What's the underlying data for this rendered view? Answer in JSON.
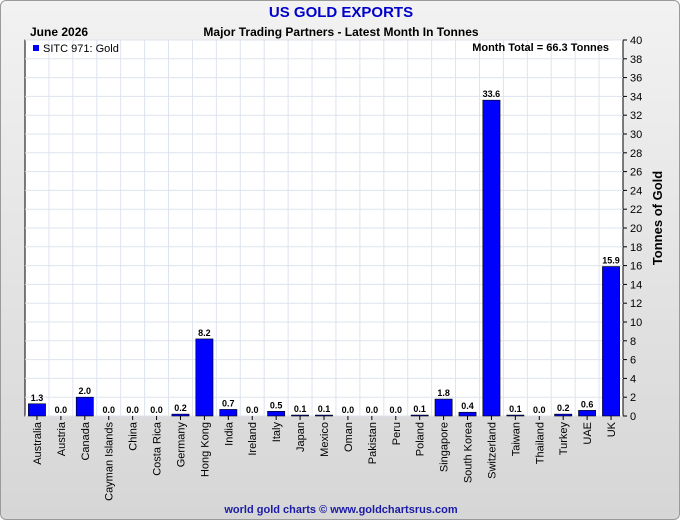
{
  "header": {
    "title": "US GOLD EXPORTS",
    "date": "June 2026",
    "subtitle": "Major Trading Partners - Latest Month In Tonnes",
    "credit": "world gold charts © www.goldchartsrus.com"
  },
  "colors": {
    "title": "#0000cc",
    "bar": "#0000ff",
    "credit": "#1a1aa6"
  },
  "chart_data": {
    "type": "bar",
    "title": "US GOLD EXPORTS",
    "subtitle": "Major Trading Partners - Latest Month In Tonnes",
    "ylabel": "Tonnes of Gold",
    "ylim": [
      0,
      40
    ],
    "ytick_step": 2,
    "grid": true,
    "legend": "top-left",
    "annotation": "Month Total = 66.3 Tonnes",
    "series": [
      {
        "name": "SITC 971: Gold",
        "values": [
          1.3,
          0.0,
          2.0,
          0.0,
          0.0,
          0.0,
          0.2,
          8.2,
          0.7,
          0.0,
          0.5,
          0.1,
          0.1,
          0.0,
          0.0,
          0.0,
          0.1,
          1.8,
          0.4,
          33.6,
          0.1,
          0.0,
          0.2,
          0.6,
          15.9
        ]
      }
    ],
    "categories": [
      "Australia",
      "Austria",
      "Canada",
      "Cayman Islands",
      "China",
      "Costa Rica",
      "Germany",
      "Hong Kong",
      "India",
      "Ireland",
      "Italy",
      "Japan",
      "Mexico",
      "Oman",
      "Pakistan",
      "Peru",
      "Poland",
      "Singapore",
      "South Korea",
      "Switzerland",
      "Taiwan",
      "Thailand",
      "Turkey",
      "UAE",
      "UK"
    ]
  }
}
